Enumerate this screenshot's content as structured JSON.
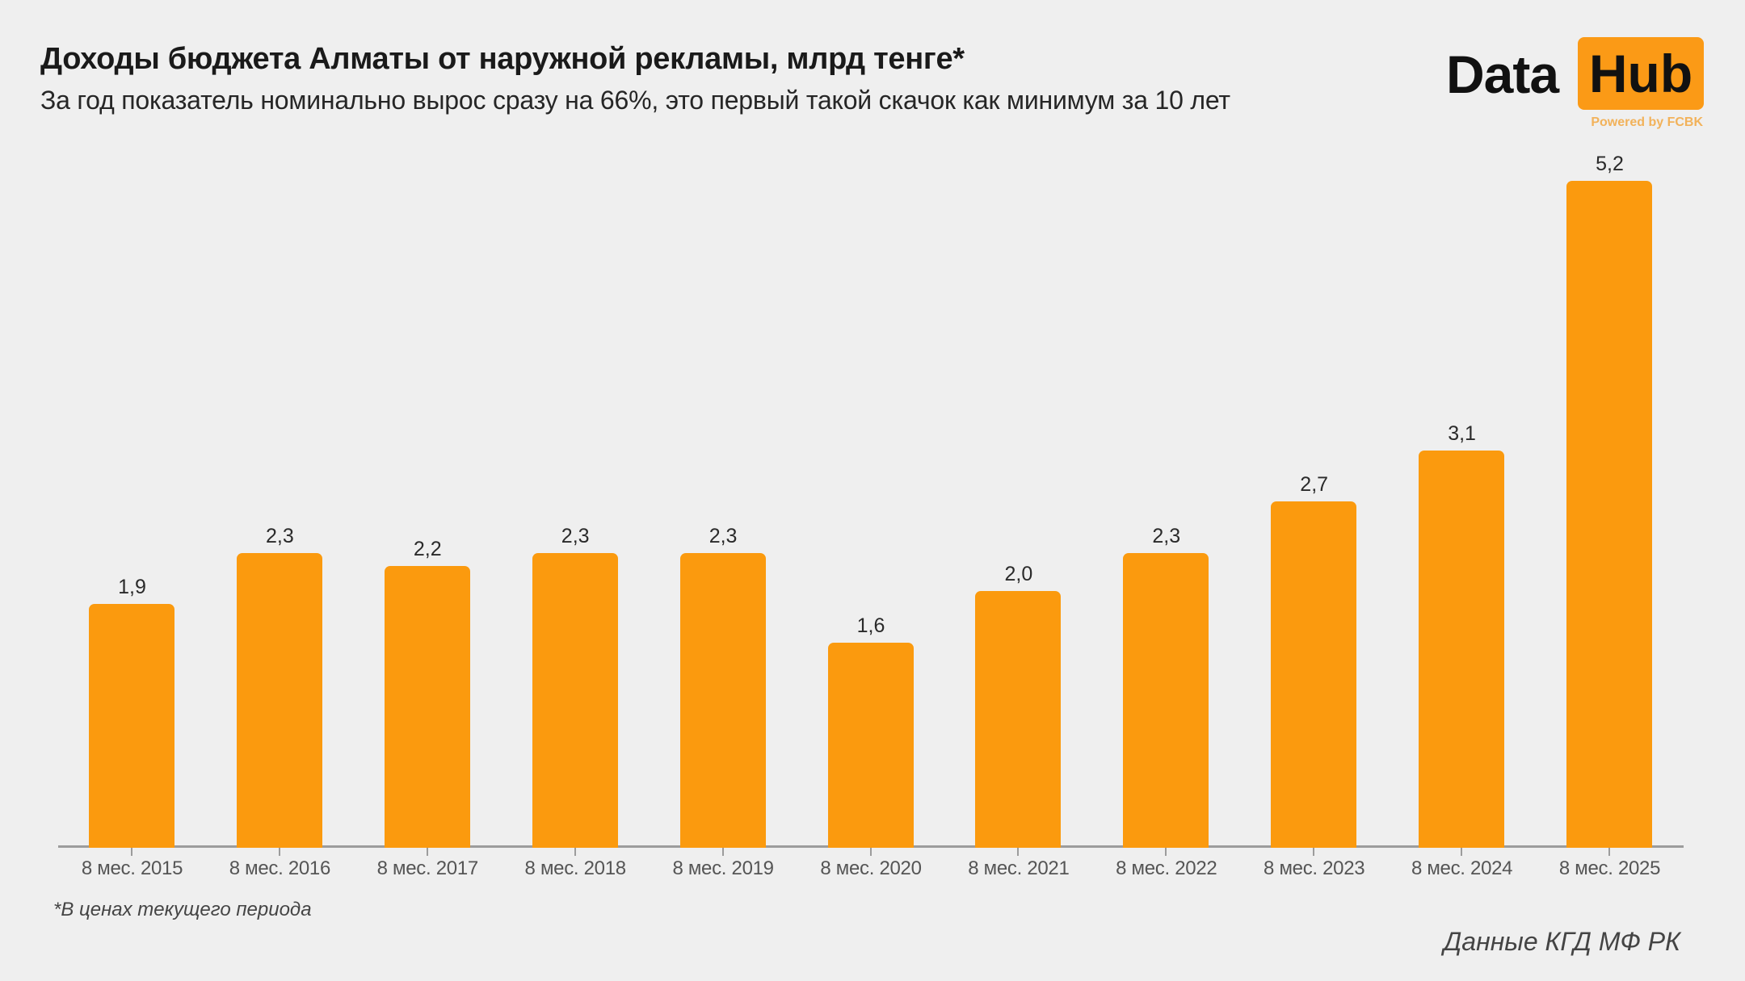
{
  "header": {
    "title": "Доходы бюджета Алматы от наружной рекламы, млрд тенге*",
    "subtitle": "За год показатель номинально вырос сразу на 66%, это первый такой скачок как минимум за 10 лет"
  },
  "logo": {
    "word1": "Data",
    "word2": "Hub",
    "tagline": "Powered by FCBK",
    "accent_color": "#fb9a16"
  },
  "footer": {
    "footnote": "*В ценах текущего периода",
    "source": "Данные КГД МФ РК"
  },
  "colors": {
    "bar": "#fb9a0e",
    "background": "#efefef",
    "axis": "#9c9c9c"
  },
  "chart_data": {
    "type": "bar",
    "title": "Доходы бюджета Алматы от наружной рекламы, млрд тенге*",
    "subtitle": "За год показатель номинально вырос сразу на 66%, это первый такой скачок как минимум за 10 лет",
    "categories": [
      "8 мес. 2015",
      "8 мес. 2016",
      "8 мес. 2017",
      "8 мес. 2018",
      "8 мес. 2019",
      "8 мес. 2020",
      "8 мес. 2021",
      "8 мес. 2022",
      "8 мес. 2023",
      "8 мес. 2024",
      "8 мес. 2025"
    ],
    "values": [
      1.9,
      2.3,
      2.2,
      2.3,
      2.3,
      1.6,
      2.0,
      2.3,
      2.7,
      3.1,
      5.2
    ],
    "value_labels": [
      "1,9",
      "2,3",
      "2,2",
      "2,3",
      "2,3",
      "1,6",
      "2,0",
      "2,3",
      "2,7",
      "3,1",
      "5,2"
    ],
    "xlabel": "",
    "ylabel": "млрд тенге",
    "ylim": [
      0,
      5.2
    ],
    "grid": false,
    "legend": null,
    "annotations": [
      "*В ценах текущего периода",
      "Данные КГД МФ РК"
    ]
  }
}
